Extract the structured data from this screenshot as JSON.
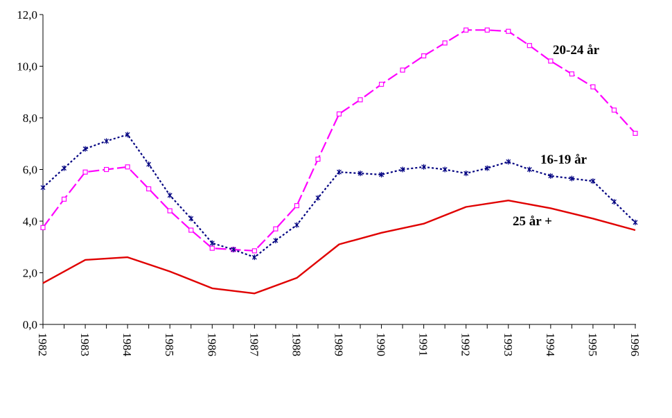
{
  "chart_data": {
    "type": "line",
    "title": "",
    "xlabel": "",
    "ylabel": "",
    "ylim": [
      0,
      12
    ],
    "yticks": [
      "0,0",
      "2,0",
      "4,0",
      "6,0",
      "8,0",
      "10,0",
      "12,0"
    ],
    "ytick_values": [
      0,
      2,
      4,
      6,
      8,
      10,
      12
    ],
    "xlim": [
      1982,
      1996
    ],
    "xticks": [
      "1982",
      "1983",
      "1984",
      "1985",
      "1986",
      "1987",
      "1988",
      "1989",
      "1990",
      "1991",
      "1992",
      "1993",
      "1994",
      "1995",
      "1996"
    ],
    "xtick_values": [
      1982,
      1983,
      1984,
      1985,
      1986,
      1987,
      1988,
      1989,
      1990,
      1991,
      1992,
      1993,
      1994,
      1995,
      1996
    ],
    "grid": false,
    "series": [
      {
        "name": "20-24 år",
        "label": "20-24 år",
        "color": "#ff00ff",
        "style": "dash",
        "marker": "square",
        "x": [
          1982,
          1982.5,
          1983,
          1983.5,
          1984,
          1984.5,
          1985,
          1985.5,
          1986,
          1986.5,
          1987,
          1987.5,
          1988,
          1988.5,
          1989,
          1989.5,
          1990,
          1990.5,
          1991,
          1991.5,
          1992,
          1992.5,
          1993,
          1993.5,
          1994,
          1994.5,
          1995,
          1995.5,
          1996
        ],
        "y": [
          3.75,
          4.85,
          5.9,
          6.0,
          6.1,
          5.25,
          4.4,
          3.65,
          2.95,
          2.9,
          2.85,
          3.7,
          4.6,
          6.4,
          8.15,
          8.7,
          9.3,
          9.85,
          10.4,
          10.9,
          11.4,
          11.4,
          11.35,
          10.8,
          10.2,
          9.7,
          9.2,
          8.3,
          7.4
        ]
      },
      {
        "name": "16-19 år",
        "label": "16-19 år",
        "color": "#000080",
        "style": "dot",
        "marker": "star",
        "x": [
          1982,
          1982.5,
          1983,
          1983.5,
          1984,
          1984.5,
          1985,
          1985.5,
          1986,
          1986.5,
          1987,
          1987.5,
          1988,
          1988.5,
          1989,
          1989.5,
          1990,
          1990.5,
          1991,
          1991.5,
          1992,
          1992.5,
          1993,
          1993.5,
          1994,
          1994.5,
          1995,
          1995.5,
          1996
        ],
        "y": [
          5.3,
          6.05,
          6.8,
          7.1,
          7.35,
          6.2,
          5.0,
          4.1,
          3.15,
          2.9,
          2.6,
          3.25,
          3.85,
          4.9,
          5.9,
          5.85,
          5.8,
          6.0,
          6.1,
          6.0,
          5.85,
          6.05,
          6.3,
          6.0,
          5.75,
          5.65,
          5.55,
          4.75,
          3.95
        ]
      },
      {
        "name": "25 år +",
        "label": "25 år +",
        "color": "#e00000",
        "style": "solid",
        "marker": "none",
        "x": [
          1982,
          1983,
          1984,
          1985,
          1986,
          1987,
          1988,
          1989,
          1990,
          1991,
          1992,
          1993,
          1994,
          1995,
          1996
        ],
        "y": [
          1.6,
          2.5,
          2.6,
          2.05,
          1.4,
          1.2,
          1.8,
          3.1,
          3.55,
          3.9,
          4.55,
          4.8,
          4.5,
          4.1,
          3.65
        ]
      }
    ]
  }
}
